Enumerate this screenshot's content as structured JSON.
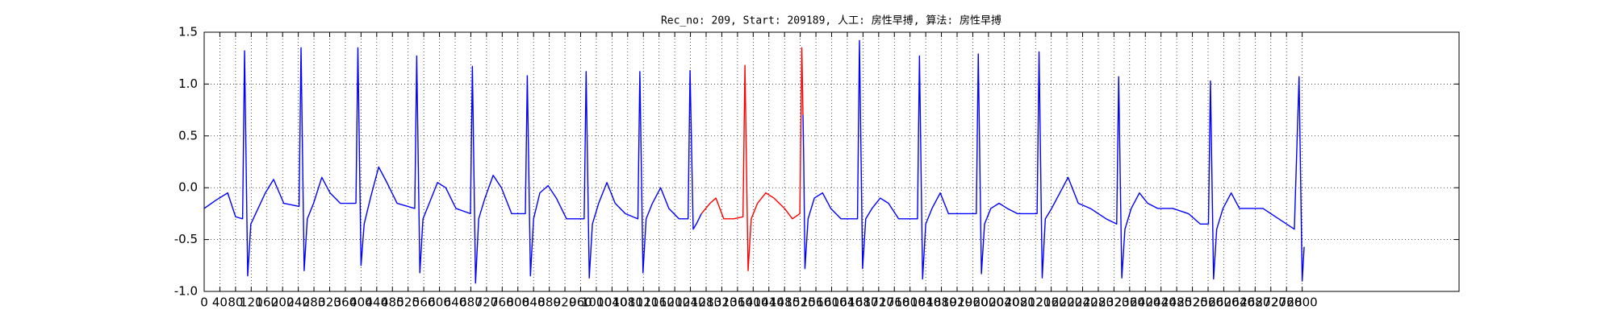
{
  "chart_data": {
    "type": "line",
    "title": "Rec_no: 209, Start: 209189, 人工: 房性早搏, 算法: 房性早搏",
    "x": [
      0,
      30,
      60,
      80,
      98,
      103,
      111,
      119,
      135,
      156,
      177,
      203,
      242,
      247,
      255,
      263,
      279,
      300,
      321,
      347,
      387,
      392,
      400,
      408,
      424,
      445,
      466,
      492,
      537,
      542,
      550,
      558,
      574,
      595,
      616,
      642,
      679,
      684,
      692,
      700,
      716,
      737,
      758,
      784,
      819,
      824,
      832,
      840,
      856,
      877,
      898,
      924,
      969,
      974,
      982,
      990,
      1006,
      1027,
      1048,
      1074,
      1106,
      1111,
      1119,
      1127,
      1143,
      1164,
      1185,
      1211,
      1234,
      1239,
      1247,
      1255,
      1268,
      1290,
      1305,
      1325,
      1350,
      1374,
      1379,
      1387,
      1395,
      1411,
      1432,
      1453,
      1480,
      1500,
      1519,
      1524,
      1527,
      1529,
      1532,
      1540,
      1556,
      1577,
      1598,
      1624,
      1666,
      1671,
      1679,
      1687,
      1703,
      1724,
      1745,
      1771,
      1819,
      1824,
      1832,
      1840,
      1856,
      1877,
      1898,
      1924,
      1969,
      1974,
      1982,
      1990,
      2006,
      2027,
      2048,
      2074,
      2124,
      2129,
      2137,
      2145,
      2161,
      2182,
      2203,
      2229,
      2260,
      2300,
      2327,
      2332,
      2340,
      2348,
      2364,
      2385,
      2406,
      2432,
      2470,
      2510,
      2540,
      2561,
      2566,
      2574,
      2582,
      2598,
      2619,
      2640,
      2666,
      2700,
      2740,
      2780,
      2792,
      2800,
      2805
    ],
    "series": [
      {
        "color": "#0000ff",
        "values": [
          -0.2,
          -0.12,
          -0.05,
          -0.28,
          -0.3,
          1.32,
          -0.85,
          -0.35,
          -0.22,
          -0.05,
          0.08,
          -0.15,
          -0.18,
          1.35,
          -0.8,
          -0.3,
          -0.15,
          0.1,
          -0.05,
          -0.15,
          -0.15,
          1.35,
          -0.75,
          -0.35,
          -0.1,
          0.2,
          0.05,
          -0.15,
          -0.2,
          1.27,
          -0.82,
          -0.3,
          -0.15,
          0.05,
          0.0,
          -0.2,
          -0.25,
          1.17,
          -0.92,
          -0.3,
          -0.1,
          0.12,
          0.0,
          -0.25,
          -0.25,
          1.08,
          -0.85,
          -0.3,
          -0.05,
          0.02,
          -0.1,
          -0.3,
          -0.3,
          1.12,
          -0.87,
          -0.35,
          -0.15,
          0.05,
          -0.15,
          -0.25,
          -0.3,
          1.12,
          -0.82,
          -0.3,
          -0.15,
          0.0,
          -0.2,
          -0.3,
          -0.3,
          1.13,
          -0.4,
          -0.35,
          -0.25,
          null,
          null,
          null,
          null,
          null,
          null,
          null,
          null,
          null,
          null,
          null,
          null,
          null,
          null,
          null,
          0.7,
          0.23,
          -0.78,
          -0.3,
          -0.1,
          -0.05,
          -0.2,
          -0.3,
          -0.3,
          1.42,
          -0.78,
          -0.3,
          -0.2,
          -0.1,
          -0.15,
          -0.3,
          -0.3,
          1.27,
          -0.88,
          -0.35,
          -0.2,
          -0.05,
          -0.25,
          -0.25,
          -0.25,
          1.29,
          -0.83,
          -0.35,
          -0.2,
          -0.15,
          -0.2,
          -0.25,
          -0.25,
          1.31,
          -0.87,
          -0.3,
          -0.2,
          -0.05,
          0.1,
          -0.15,
          -0.2,
          -0.3,
          -0.35,
          1.07,
          -0.87,
          -0.4,
          -0.2,
          -0.05,
          -0.15,
          -0.2,
          -0.2,
          -0.25,
          -0.35,
          -0.35,
          1.03,
          -0.88,
          -0.4,
          -0.2,
          -0.05,
          -0.2,
          -0.2,
          -0.2,
          -0.3,
          -0.4,
          1.07,
          -0.9,
          -0.57
        ]
      },
      {
        "color": "#ff0000",
        "values": [
          null,
          null,
          null,
          null,
          null,
          null,
          null,
          null,
          null,
          null,
          null,
          null,
          null,
          null,
          null,
          null,
          null,
          null,
          null,
          null,
          null,
          null,
          null,
          null,
          null,
          null,
          null,
          null,
          null,
          null,
          null,
          null,
          null,
          null,
          null,
          null,
          null,
          null,
          null,
          null,
          null,
          null,
          null,
          null,
          null,
          null,
          null,
          null,
          null,
          null,
          null,
          null,
          null,
          null,
          null,
          null,
          null,
          null,
          null,
          null,
          null,
          null,
          null,
          null,
          null,
          null,
          null,
          null,
          null,
          null,
          null,
          null,
          -0.25,
          -0.15,
          -0.1,
          -0.3,
          -0.3,
          -0.28,
          1.18,
          -0.8,
          -0.3,
          -0.15,
          -0.05,
          -0.1,
          -0.2,
          -0.3,
          -0.25,
          1.35,
          0.7,
          null,
          null,
          null,
          null,
          null,
          null,
          null,
          null,
          null,
          null,
          null,
          null,
          null,
          null,
          null,
          null,
          null,
          null,
          null,
          null,
          null,
          null,
          null,
          null,
          null,
          null,
          null,
          null,
          null,
          null,
          null,
          null,
          null,
          null,
          null,
          null,
          null,
          null,
          null,
          null,
          null,
          null,
          null,
          null,
          null,
          null,
          null,
          null,
          null,
          null,
          null,
          null,
          null,
          null,
          null,
          null,
          null,
          null,
          null,
          null,
          null,
          null,
          null,
          null,
          null,
          null
        ]
      }
    ],
    "xlim": [
      0,
      3200
    ],
    "xticks": [
      0,
      40,
      80,
      120,
      160,
      200,
      240,
      280,
      320,
      360,
      400,
      440,
      480,
      520,
      560,
      600,
      640,
      680,
      720,
      760,
      800,
      840,
      880,
      920,
      960,
      1000,
      1040,
      1080,
      1120,
      1160,
      1200,
      1240,
      1280,
      1320,
      1360,
      1400,
      1440,
      1480,
      1520,
      1560,
      1600,
      1640,
      1680,
      1720,
      1760,
      1800,
      1840,
      1880,
      1920,
      1960,
      2000,
      2040,
      2080,
      2120,
      2160,
      2200,
      2240,
      2280,
      2320,
      2360,
      2400,
      2440,
      2480,
      2520,
      2560,
      2600,
      2640,
      2680,
      2720,
      2760,
      2800
    ],
    "ylim": [
      -1,
      1.5
    ],
    "yticks": [
      {
        "value": -1,
        "label": "-1.0"
      },
      -0.5,
      {
        "value": 0,
        "label": "0.0"
      },
      0.5,
      {
        "value": 1,
        "label": "1.0"
      },
      1.5
    ],
    "grid": true
  }
}
